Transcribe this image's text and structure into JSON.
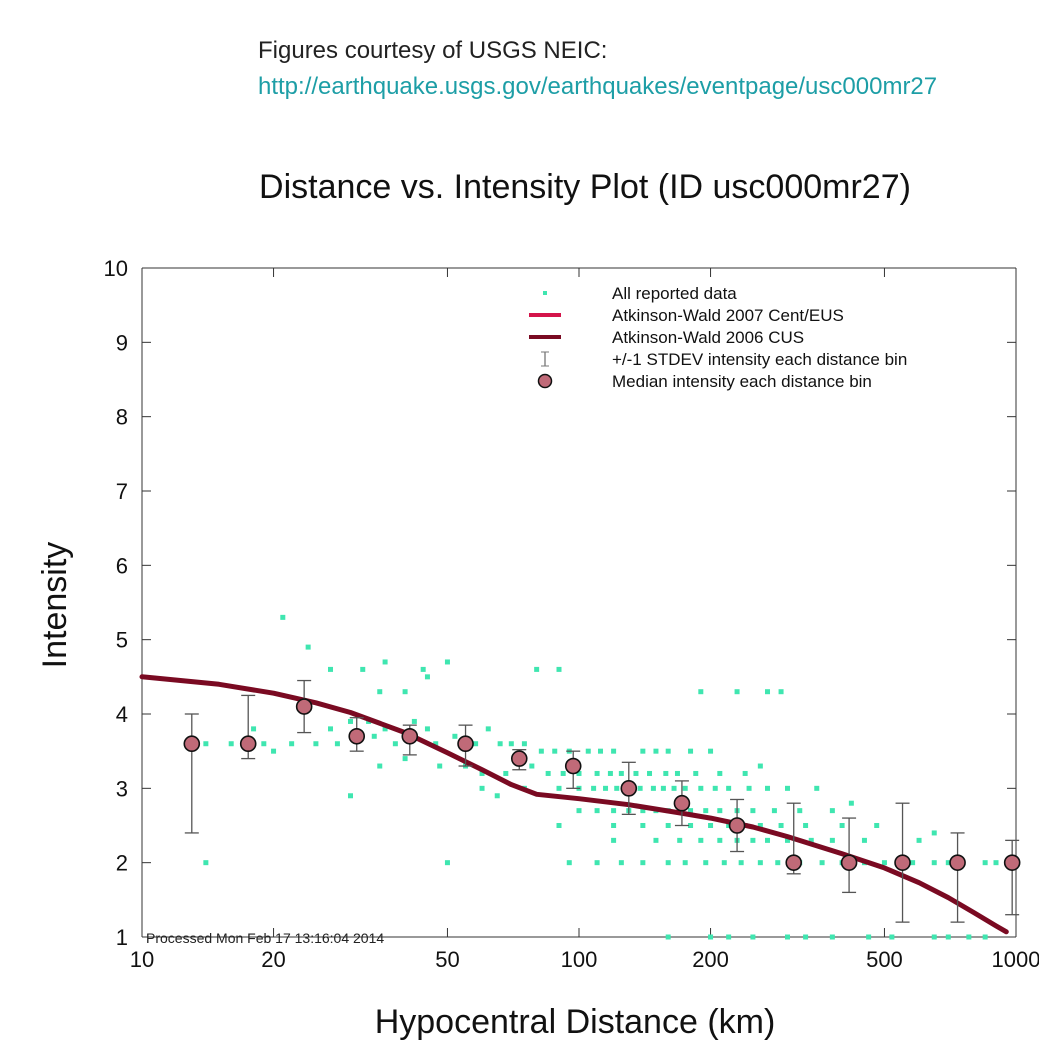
{
  "credit": {
    "line1": "Figures courtesy of USGS NEIC:",
    "url": "http://earthquake.usgs.gov/earthquakes/eventpage/usc000mr27"
  },
  "chart_data": {
    "type": "scatter",
    "title": "Distance vs. Intensity Plot (ID usc000mr27)",
    "xlabel": "Hypocentral Distance (km)",
    "ylabel": "Intensity",
    "xscale": "log",
    "xlim": [
      10,
      1000
    ],
    "ylim": [
      1,
      10
    ],
    "xticks": [
      10,
      20,
      50,
      100,
      200,
      500,
      1000
    ],
    "xtick_labels": [
      "10",
      "20",
      "50",
      "100",
      "200",
      "500",
      "1000"
    ],
    "yticks": [
      1,
      2,
      3,
      4,
      5,
      6,
      7,
      8,
      9,
      10
    ],
    "ytick_labels": [
      "1",
      "2",
      "3",
      "4",
      "5",
      "6",
      "7",
      "8",
      "9",
      "10"
    ],
    "grid": false,
    "legend_position": "top-right",
    "legend": [
      "All reported data",
      "Atkinson-Wald 2007 Cent/EUS",
      "Atkinson-Wald 2006 CUS",
      "+/-1 STDEV intensity each distance bin",
      "Median intensity each distance bin"
    ],
    "annotation": "Processed Mon Feb 17 13:16:04 2014",
    "colors": {
      "reported": "#3fe6b0",
      "aw2007": "#d4144a",
      "aw2006": "#7a0a22",
      "median_fill": "#c06a78",
      "errorbar": "#555555"
    },
    "curve_aw2006": {
      "x": [
        10,
        15,
        20,
        25,
        30,
        40,
        50,
        60,
        70,
        80,
        100,
        130,
        170,
        200,
        250,
        300,
        400,
        500,
        600,
        700,
        800,
        900,
        950
      ],
      "y": [
        4.5,
        4.4,
        4.28,
        4.15,
        4.02,
        3.75,
        3.48,
        3.25,
        3.05,
        2.92,
        2.86,
        2.78,
        2.67,
        2.6,
        2.48,
        2.35,
        2.12,
        1.93,
        1.73,
        1.53,
        1.33,
        1.15,
        1.07
      ]
    },
    "medians": [
      {
        "x": 13,
        "y": 3.6,
        "lo": 2.4,
        "hi": 4.0
      },
      {
        "x": 17.5,
        "y": 3.6,
        "lo": 3.4,
        "hi": 4.25
      },
      {
        "x": 23.5,
        "y": 4.1,
        "lo": 3.75,
        "hi": 4.45
      },
      {
        "x": 31,
        "y": 3.7,
        "lo": 3.5,
        "hi": 3.95
      },
      {
        "x": 41,
        "y": 3.7,
        "lo": 3.45,
        "hi": 3.85
      },
      {
        "x": 55,
        "y": 3.6,
        "lo": 3.3,
        "hi": 3.85
      },
      {
        "x": 73,
        "y": 3.4,
        "lo": 3.25,
        "hi": 3.52
      },
      {
        "x": 97,
        "y": 3.3,
        "lo": 3.0,
        "hi": 3.5
      },
      {
        "x": 130,
        "y": 3.0,
        "lo": 2.65,
        "hi": 3.35
      },
      {
        "x": 172,
        "y": 2.8,
        "lo": 2.5,
        "hi": 3.1
      },
      {
        "x": 230,
        "y": 2.5,
        "lo": 2.15,
        "hi": 2.85
      },
      {
        "x": 310,
        "y": 2.0,
        "lo": 1.85,
        "hi": 2.8
      },
      {
        "x": 415,
        "y": 2.0,
        "lo": 1.6,
        "hi": 2.6
      },
      {
        "x": 550,
        "y": 2.0,
        "lo": 1.2,
        "hi": 2.8
      },
      {
        "x": 735,
        "y": 2.0,
        "lo": 1.2,
        "hi": 2.4
      },
      {
        "x": 980,
        "y": 2.0,
        "lo": 1.3,
        "hi": 2.3
      }
    ],
    "reported_points": [
      [
        21,
        5.3
      ],
      [
        24,
        4.9
      ],
      [
        27,
        4.6
      ],
      [
        32,
        4.6
      ],
      [
        36,
        4.7
      ],
      [
        44,
        4.6
      ],
      [
        50,
        4.7
      ],
      [
        80,
        4.6
      ],
      [
        90,
        4.6
      ],
      [
        35,
        4.3
      ],
      [
        40,
        4.3
      ],
      [
        45,
        4.5
      ],
      [
        190,
        4.3
      ],
      [
        230,
        4.3
      ],
      [
        270,
        4.3
      ],
      [
        290,
        4.3
      ],
      [
        13,
        3.6
      ],
      [
        14,
        3.6
      ],
      [
        16,
        3.6
      ],
      [
        18,
        3.8
      ],
      [
        19,
        3.6
      ],
      [
        20,
        3.5
      ],
      [
        22,
        3.6
      ],
      [
        25,
        3.6
      ],
      [
        27,
        3.8
      ],
      [
        28,
        3.6
      ],
      [
        30,
        3.9
      ],
      [
        33,
        3.9
      ],
      [
        34,
        3.7
      ],
      [
        36,
        3.8
      ],
      [
        38,
        3.6
      ],
      [
        42,
        3.9
      ],
      [
        45,
        3.8
      ],
      [
        47,
        3.6
      ],
      [
        52,
        3.7
      ],
      [
        58,
        3.6
      ],
      [
        62,
        3.8
      ],
      [
        66,
        3.6
      ],
      [
        70,
        3.6
      ],
      [
        75,
        3.6
      ],
      [
        82,
        3.5
      ],
      [
        88,
        3.5
      ],
      [
        95,
        3.5
      ],
      [
        105,
        3.5
      ],
      [
        112,
        3.5
      ],
      [
        120,
        3.5
      ],
      [
        140,
        3.5
      ],
      [
        150,
        3.5
      ],
      [
        160,
        3.5
      ],
      [
        180,
        3.5
      ],
      [
        200,
        3.5
      ],
      [
        35,
        3.3
      ],
      [
        40,
        3.4
      ],
      [
        48,
        3.3
      ],
      [
        55,
        3.3
      ],
      [
        60,
        3.2
      ],
      [
        68,
        3.2
      ],
      [
        78,
        3.3
      ],
      [
        85,
        3.2
      ],
      [
        92,
        3.2
      ],
      [
        100,
        3.2
      ],
      [
        110,
        3.2
      ],
      [
        118,
        3.2
      ],
      [
        125,
        3.2
      ],
      [
        135,
        3.2
      ],
      [
        145,
        3.2
      ],
      [
        158,
        3.2
      ],
      [
        168,
        3.2
      ],
      [
        185,
        3.2
      ],
      [
        210,
        3.2
      ],
      [
        240,
        3.2
      ],
      [
        260,
        3.3
      ],
      [
        30,
        2.9
      ],
      [
        60,
        3.0
      ],
      [
        65,
        2.9
      ],
      [
        75,
        3.0
      ],
      [
        90,
        3.0
      ],
      [
        100,
        3.0
      ],
      [
        108,
        3.0
      ],
      [
        115,
        3.0
      ],
      [
        122,
        3.0
      ],
      [
        130,
        3.0
      ],
      [
        138,
        3.0
      ],
      [
        148,
        3.0
      ],
      [
        156,
        3.0
      ],
      [
        165,
        3.0
      ],
      [
        175,
        3.0
      ],
      [
        190,
        3.0
      ],
      [
        205,
        3.0
      ],
      [
        220,
        3.0
      ],
      [
        245,
        3.0
      ],
      [
        270,
        3.0
      ],
      [
        300,
        3.0
      ],
      [
        350,
        3.0
      ],
      [
        100,
        2.7
      ],
      [
        110,
        2.7
      ],
      [
        120,
        2.7
      ],
      [
        130,
        2.7
      ],
      [
        140,
        2.7
      ],
      [
        150,
        2.7
      ],
      [
        160,
        2.7
      ],
      [
        170,
        2.7
      ],
      [
        180,
        2.7
      ],
      [
        195,
        2.7
      ],
      [
        210,
        2.7
      ],
      [
        230,
        2.7
      ],
      [
        250,
        2.7
      ],
      [
        280,
        2.7
      ],
      [
        320,
        2.7
      ],
      [
        380,
        2.7
      ],
      [
        420,
        2.8
      ],
      [
        90,
        2.5
      ],
      [
        120,
        2.5
      ],
      [
        140,
        2.5
      ],
      [
        160,
        2.5
      ],
      [
        180,
        2.5
      ],
      [
        200,
        2.5
      ],
      [
        220,
        2.5
      ],
      [
        240,
        2.5
      ],
      [
        260,
        2.5
      ],
      [
        290,
        2.5
      ],
      [
        330,
        2.5
      ],
      [
        400,
        2.5
      ],
      [
        480,
        2.5
      ],
      [
        120,
        2.3
      ],
      [
        150,
        2.3
      ],
      [
        170,
        2.3
      ],
      [
        190,
        2.3
      ],
      [
        210,
        2.3
      ],
      [
        230,
        2.3
      ],
      [
        250,
        2.3
      ],
      [
        270,
        2.3
      ],
      [
        300,
        2.3
      ],
      [
        340,
        2.3
      ],
      [
        380,
        2.3
      ],
      [
        450,
        2.3
      ],
      [
        600,
        2.3
      ],
      [
        650,
        2.4
      ],
      [
        14,
        2.0
      ],
      [
        50,
        2.0
      ],
      [
        95,
        2.0
      ],
      [
        110,
        2.0
      ],
      [
        125,
        2.0
      ],
      [
        140,
        2.0
      ],
      [
        160,
        2.0
      ],
      [
        175,
        2.0
      ],
      [
        195,
        2.0
      ],
      [
        215,
        2.0
      ],
      [
        235,
        2.0
      ],
      [
        260,
        2.0
      ],
      [
        285,
        2.0
      ],
      [
        320,
        2.0
      ],
      [
        360,
        2.0
      ],
      [
        400,
        2.0
      ],
      [
        450,
        2.0
      ],
      [
        500,
        2.0
      ],
      [
        580,
        2.0
      ],
      [
        650,
        2.0
      ],
      [
        700,
        2.0
      ],
      [
        850,
        2.0
      ],
      [
        900,
        2.0
      ],
      [
        160,
        1.0
      ],
      [
        200,
        1.0
      ],
      [
        220,
        1.0
      ],
      [
        250,
        1.0
      ],
      [
        300,
        1.0
      ],
      [
        330,
        1.0
      ],
      [
        380,
        1.0
      ],
      [
        460,
        1.0
      ],
      [
        520,
        1.0
      ],
      [
        650,
        1.0
      ],
      [
        700,
        1.0
      ],
      [
        780,
        1.0
      ],
      [
        850,
        1.0
      ]
    ]
  }
}
